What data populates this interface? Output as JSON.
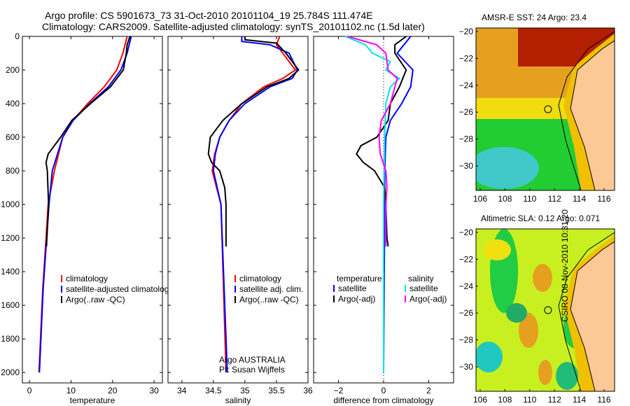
{
  "header": {
    "line1": "Argo profile: CS 5901673_73 31-Oct-2010 20101104_19 25.784S 111.474E",
    "line2": "Climatology: CARS2009. Satellite-adjusted climatology: synTS_20101102.nc (1.5d later)"
  },
  "chart_data": [
    {
      "type": "line",
      "name": "temperature",
      "xlabel": "temperature",
      "ylabel": "",
      "xlim": [
        -1.7,
        32
      ],
      "ylim": [
        2062,
        0
      ],
      "xticks": [
        0,
        10,
        20,
        30
      ],
      "yticks": [
        0,
        200,
        400,
        600,
        800,
        1000,
        1200,
        1400,
        1600,
        1800,
        2000
      ],
      "legend": [
        "climatology",
        "satellite-adjusted climatology",
        "Argo(..raw -QC)"
      ],
      "series": [
        {
          "name": "climatology",
          "color": "#ff0000",
          "depth": [
            0,
            50,
            100,
            200,
            300,
            400,
            500,
            600,
            800,
            1000,
            1200,
            1500,
            2000
          ],
          "values": [
            23.5,
            23,
            22.5,
            21,
            18,
            14,
            10.5,
            8,
            6,
            4.5,
            4,
            3.2,
            2.3
          ]
        },
        {
          "name": "satellite-adjusted climatology",
          "color": "#0000ff",
          "depth": [
            0,
            50,
            100,
            200,
            300,
            400,
            500,
            600,
            800,
            1000,
            1500,
            2000
          ],
          "values": [
            24.5,
            24,
            23.5,
            22,
            19,
            14.5,
            10.5,
            8,
            5.5,
            4.7,
            3.3,
            2.4
          ]
        },
        {
          "name": "Argo(..raw -QC)",
          "color": "#000000",
          "depth": [
            0,
            50,
            100,
            200,
            300,
            400,
            500,
            600,
            700,
            750,
            800,
            1000,
            1200,
            1250
          ],
          "values": [
            24.2,
            23.5,
            23.3,
            22.6,
            19.5,
            14.7,
            10.2,
            7.5,
            4.5,
            4.0,
            4.3,
            4.6,
            4.2,
            4.1
          ]
        }
      ]
    },
    {
      "type": "line",
      "name": "salinity",
      "xlabel": "salinity",
      "xlim": [
        33.78,
        36.0
      ],
      "ylim": [
        2062,
        0
      ],
      "xticks": [
        34,
        34.5,
        35,
        35.5,
        36
      ],
      "legend": [
        "climatology",
        "satellite adj. clim.",
        "Argo(..raw -QC)"
      ],
      "annotations": [
        "Argo AUSTRALIA",
        "PI: Susan Wijffels"
      ],
      "series": [
        {
          "name": "climatology",
          "color": "#ff0000",
          "depth": [
            0,
            50,
            100,
            200,
            250,
            300,
            400,
            500,
            600,
            700,
            800,
            1000,
            1500,
            2000
          ],
          "values": [
            35.55,
            35.5,
            35.6,
            35.8,
            35.6,
            35.3,
            34.95,
            34.75,
            34.6,
            34.52,
            34.48,
            34.62,
            34.66,
            34.7
          ]
        },
        {
          "name": "satellite adj. clim.",
          "color": "#0000ff",
          "depth": [
            0,
            30,
            50,
            100,
            200,
            250,
            300,
            400,
            500,
            600,
            700,
            800,
            1000,
            1500,
            2000
          ],
          "values": [
            34.95,
            34.95,
            35.4,
            35.7,
            35.83,
            35.75,
            35.4,
            35.0,
            34.75,
            34.6,
            34.53,
            34.5,
            34.62,
            34.67,
            34.72
          ]
        },
        {
          "name": "Argo(..raw -QC)",
          "color": "#000000",
          "depth": [
            0,
            20,
            40,
            100,
            200,
            250,
            300,
            400,
            500,
            600,
            700,
            750,
            800,
            900,
            1000,
            1200,
            1250
          ],
          "values": [
            35.0,
            35.0,
            35.5,
            35.65,
            35.85,
            35.7,
            35.35,
            34.95,
            34.65,
            34.45,
            34.42,
            34.47,
            34.6,
            34.68,
            34.7,
            34.7,
            34.7
          ]
        }
      ]
    },
    {
      "type": "line",
      "name": "difference",
      "xlabel": "difference from climatology",
      "xlim": [
        -3.1,
        3.1
      ],
      "ylim": [
        2062,
        0
      ],
      "xticks": [
        -2,
        0,
        2
      ],
      "legend_headers": [
        "temperature",
        "salinity"
      ],
      "legend": [
        "satellite",
        "Argo(-adj)",
        "satellite",
        "Argo(-adj)"
      ],
      "series": [
        {
          "name": "temperature satellite",
          "color": "#0000ff",
          "depth": [
            0,
            100,
            200,
            300,
            400,
            500,
            600,
            800,
            1000,
            2000
          ],
          "values": [
            1.2,
            0.6,
            1.3,
            1.2,
            0.8,
            0.3,
            0.1,
            0.05,
            0.05,
            0
          ]
        },
        {
          "name": "temperature Argo(-adj)",
          "color": "#000000",
          "depth": [
            0,
            50,
            100,
            200,
            300,
            400,
            500,
            600,
            650,
            700,
            750,
            800,
            900,
            1000,
            1200,
            1250
          ],
          "values": [
            1.0,
            0.5,
            0.5,
            1.0,
            0.7,
            0.3,
            0.2,
            -0.3,
            -1.0,
            -1.2,
            -0.9,
            -0.4,
            0.05,
            0.1,
            0.15,
            0.2
          ]
        },
        {
          "name": "salinity satellite",
          "color": "#00e5e5",
          "depth": [
            0,
            50,
            100,
            150,
            200,
            250,
            300,
            400,
            600,
            1000,
            2000
          ],
          "values": [
            -1.7,
            -0.8,
            -0.5,
            0.3,
            0.1,
            0.7,
            0.3,
            0.1,
            0.05,
            0,
            0
          ]
        },
        {
          "name": "salinity Argo(-adj)",
          "color": "#ff00ff",
          "depth": [
            0,
            50,
            100,
            200,
            250,
            300,
            400,
            500,
            600,
            700,
            800,
            900,
            1000,
            1250
          ],
          "values": [
            -1.6,
            -0.3,
            0.1,
            0.2,
            0.6,
            0.5,
            0.3,
            -0.1,
            -0.2,
            -0.15,
            0.1,
            0.15,
            0.1,
            0.1
          ]
        }
      ]
    }
  ],
  "maps": [
    {
      "title": "AMSR-E SST: 24 Argo: 23.4",
      "kind": "sst"
    },
    {
      "title": "Altimetric SLA: 0.12 Argo: 0.071",
      "kind": "sla"
    }
  ],
  "map_axes": {
    "lon_ticks": [
      106,
      108,
      110,
      112,
      114,
      116
    ],
    "lat_ticks": [
      -20,
      -22,
      -24,
      -26,
      -28,
      -30
    ],
    "argo_lon": 111.474,
    "argo_lat": -25.784
  },
  "footer": {
    "stamp": "CSIRO 08-Nov-2010 10:31:20"
  }
}
